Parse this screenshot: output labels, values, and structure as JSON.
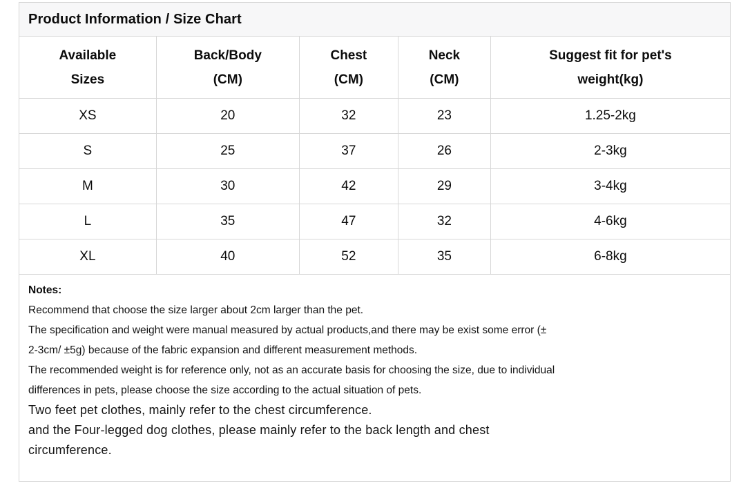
{
  "panel": {
    "title": "Product Information / Size Chart"
  },
  "size_chart": {
    "columns": [
      {
        "id": "available-sizes",
        "line1": "Available",
        "line2": "Sizes"
      },
      {
        "id": "back-body-cm",
        "line1": "Back/Body",
        "line2": "(CM)"
      },
      {
        "id": "chest-cm",
        "line1": "Chest",
        "line2": "(CM)"
      },
      {
        "id": "neck-cm",
        "line1": "Neck",
        "line2": "(CM)"
      },
      {
        "id": "suggest-weight",
        "line1": "Suggest fit for pet's",
        "line2": "weight(kg)"
      }
    ],
    "rows": [
      {
        "size": "XS",
        "back_body_cm": "20",
        "chest_cm": "32",
        "neck_cm": "23",
        "weight": "1.25-2kg"
      },
      {
        "size": "S",
        "back_body_cm": "25",
        "chest_cm": "37",
        "neck_cm": "26",
        "weight": "2-3kg"
      },
      {
        "size": "M",
        "back_body_cm": "30",
        "chest_cm": "42",
        "neck_cm": "29",
        "weight": "3-4kg"
      },
      {
        "size": "L",
        "back_body_cm": "35",
        "chest_cm": "47",
        "neck_cm": "32",
        "weight": "4-6kg"
      },
      {
        "size": "XL",
        "back_body_cm": "40",
        "chest_cm": "52",
        "neck_cm": "35",
        "weight": "6-8kg"
      }
    ]
  },
  "notes": {
    "label": "Notes:",
    "lines": [
      {
        "text": "Recommend that choose the size larger about 2cm larger than the pet.",
        "size": "normal"
      },
      {
        "text": "The specification and weight were manual measured by actual products,and there may be exist some error (±",
        "size": "normal"
      },
      {
        "text": "2-3cm/ ±5g) because of the fabric expansion and different measurement methods.",
        "size": "normal"
      },
      {
        "text": "The recommended weight is for reference only, not as an accurate basis for choosing the size, due to individual",
        "size": "normal"
      },
      {
        "text": "differences in pets, please choose the size according to the actual situation of pets.",
        "size": "normal"
      },
      {
        "text": "Two feet pet clothes, mainly refer to the chest circumference.",
        "size": "large"
      },
      {
        "text": "and the Four-legged dog clothes, please mainly refer to the back length and chest",
        "size": "large"
      },
      {
        "text": "circumference.",
        "size": "large"
      }
    ]
  },
  "colors": {
    "title_bar_bg": "#f7f7f8",
    "border": "#d7d7d7",
    "text": "#111111"
  }
}
